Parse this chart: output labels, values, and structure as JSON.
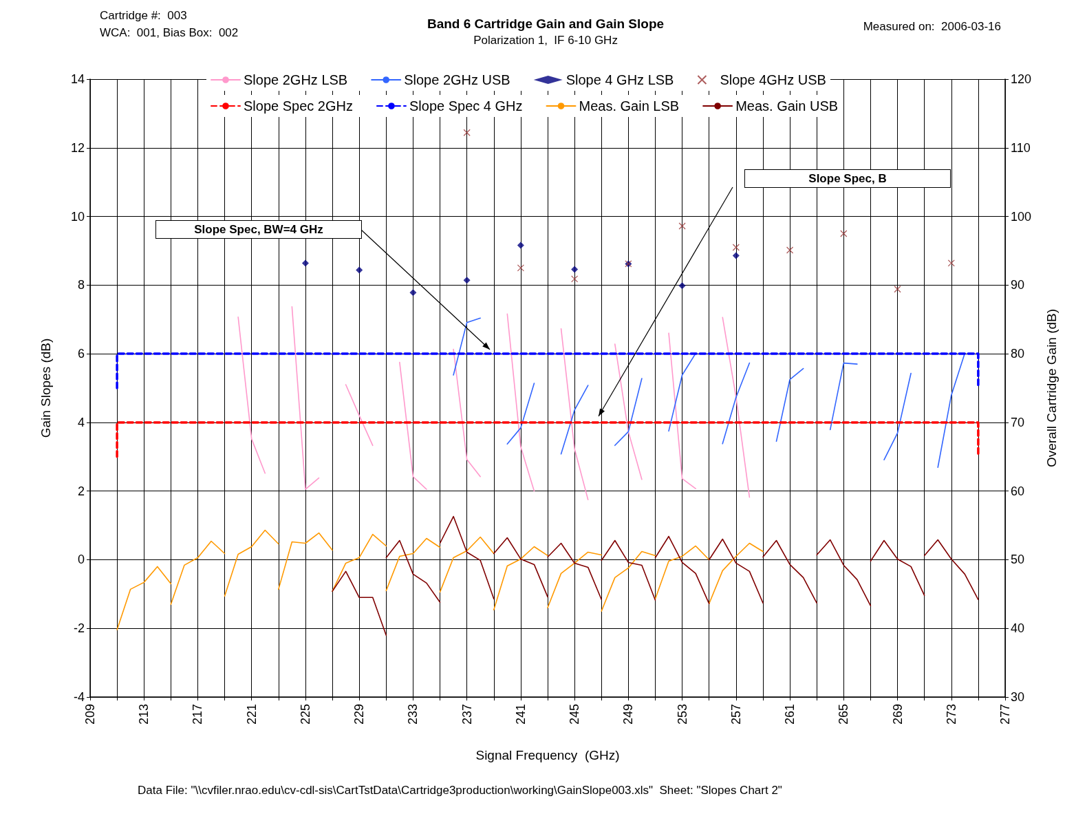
{
  "chart_data": {
    "type": "line",
    "title": "Band 6 Cartridge Gain and Gain Slope",
    "subtitle": "Polarization 1,  IF 6-10 GHz",
    "xlabel": "Signal Frequency  (GHz)",
    "ylabel": "Gain Slopes (dB)",
    "y2label": "Overall Cartridge Gain (dB)",
    "annotations": [
      "Cartridge #:  003",
      "WCA:  001, Bias Box:  002",
      "Measured on:  2006-03-16",
      "Data File: \"\\\\cvfiler.nrao.edu\\cv-cdl-sis\\CartTstData\\Cartridge3production\\working\\GainSlope003.xls\"  Sheet: \"Slopes Chart 2\"",
      "Slope Spec, BW=4 GHz",
      "Slope Spec, B"
    ],
    "xlim": [
      209,
      277
    ],
    "xticks": [
      209,
      {
        "value": 211,
        "label": null
      },
      213,
      {
        "value": 215,
        "label": null
      },
      217,
      {
        "value": 219,
        "label": null
      },
      221,
      {
        "value": 223,
        "label": null
      },
      225,
      {
        "value": 227,
        "label": null
      },
      229,
      {
        "value": 231,
        "label": null
      },
      233,
      {
        "value": 235,
        "label": null
      },
      237,
      {
        "value": 239,
        "label": null
      },
      241,
      {
        "value": 243,
        "label": null
      },
      245,
      {
        "value": 247,
        "label": null
      },
      249,
      {
        "value": 251,
        "label": null
      },
      253,
      {
        "value": 255,
        "label": null
      },
      257,
      {
        "value": 259,
        "label": null
      },
      261,
      {
        "value": 263,
        "label": null
      },
      265,
      {
        "value": 267,
        "label": null
      },
      269,
      {
        "value": 271,
        "label": null
      },
      273,
      {
        "value": 275,
        "label": null
      },
      277
    ],
    "ylim": [
      -4,
      14
    ],
    "yticks": [
      -4,
      -2,
      0,
      2,
      4,
      6,
      8,
      10,
      12,
      14
    ],
    "y2lim": [
      30,
      120
    ],
    "y2ticks": [
      30,
      40,
      50,
      60,
      70,
      80,
      90,
      100,
      110,
      120
    ],
    "grid": true,
    "legend": "top",
    "series": [
      {
        "name": "Slope 2GHz LSB",
        "color": "#ff99cc",
        "marker": "none",
        "x": [
          220,
          221,
          222,
          223,
          224,
          225,
          226,
          227,
          228,
          229,
          230,
          231,
          232,
          233,
          234,
          235,
          236,
          237,
          238,
          239,
          240,
          241,
          242,
          243,
          244,
          245,
          246,
          247,
          248,
          249,
          250,
          251,
          252,
          253,
          254,
          255,
          256,
          257,
          258
        ],
        "values": [
          7.07,
          3.52,
          2.52,
          null,
          7.37,
          2.05,
          2.38,
          null,
          5.1,
          4.2,
          3.33,
          null,
          5.75,
          2.42,
          2.05,
          null,
          6.13,
          2.92,
          2.42,
          null,
          7.16,
          3.29,
          2.0,
          null,
          6.73,
          3.23,
          1.75,
          null,
          6.28,
          3.73,
          2.34,
          null,
          6.6,
          2.36,
          2.07,
          null,
          7.06,
          4.74,
          1.82
        ]
      },
      {
        "name": "Slope 2GHz USB",
        "color": "#3366ff",
        "marker": "none",
        "x": [
          236,
          237,
          238,
          239,
          240,
          241,
          242,
          243,
          244,
          245,
          246,
          247,
          248,
          249,
          250,
          251,
          252,
          253,
          254,
          255,
          256,
          257,
          258,
          259,
          260,
          261,
          262,
          263,
          264,
          265,
          266,
          267,
          268,
          269,
          270,
          271,
          272,
          273,
          274
        ],
        "values": [
          5.38,
          6.91,
          7.04,
          null,
          3.37,
          3.84,
          5.14,
          null,
          3.08,
          4.36,
          5.08,
          null,
          3.33,
          3.73,
          5.28,
          null,
          3.75,
          5.38,
          6.01,
          null,
          3.38,
          4.73,
          5.73,
          null,
          3.45,
          5.25,
          5.57,
          null,
          3.79,
          5.73,
          5.7,
          null,
          2.91,
          3.69,
          5.43,
          null,
          2.69,
          4.79,
          6.01
        ]
      },
      {
        "name": "Slope 4 GHz LSB",
        "type": "scatter",
        "color": "#000080",
        "marker": "diamond",
        "x": [
          225,
          229,
          233,
          237,
          241,
          245,
          249,
          253,
          257
        ],
        "values": [
          8.64,
          8.44,
          7.78,
          8.14,
          9.16,
          8.46,
          8.62,
          7.98,
          8.86
        ]
      },
      {
        "name": "Slope 4GHz USB",
        "type": "scatter",
        "color": "#993333",
        "marker": "cross",
        "x": [
          237,
          241,
          245,
          249,
          253,
          257,
          261,
          265,
          269,
          273
        ],
        "values": [
          12.44,
          8.5,
          8.18,
          8.62,
          9.72,
          9.1,
          9.02,
          9.5,
          7.88,
          8.64
        ]
      },
      {
        "name": "Slope Spec 2GHz",
        "color": "#ff0000",
        "marker": "none",
        "line_style": "dashed",
        "x": [
          211,
          211,
          275,
          275
        ],
        "values": [
          3,
          4,
          4,
          3
        ]
      },
      {
        "name": "Slope Spec 4 GHz",
        "color": "#0000ff",
        "marker": "none",
        "line_style": "dashed",
        "x": [
          211,
          211,
          275,
          275
        ],
        "values": [
          5,
          6,
          6,
          5
        ]
      },
      {
        "name": "Meas. Gain LSB",
        "color": "#ff9900",
        "marker": "none",
        "axis": "y2",
        "x": [
          211,
          212,
          213,
          214,
          215
        ],
        "values": [
          39.8,
          45.7,
          46.7,
          49.0,
          46.5
        ]
      },
      {
        "color": "#ff9900",
        "marker": "none",
        "axis": "y2",
        "x": [
          215,
          216,
          217,
          218,
          219
        ],
        "values": [
          43.5,
          49.2,
          50.3,
          52.7,
          50.9
        ]
      },
      {
        "color": "#ff9900",
        "marker": "none",
        "axis": "y2",
        "x": [
          219,
          220,
          221,
          222,
          223
        ],
        "values": [
          44.7,
          50.8,
          51.9,
          54.3,
          52.3
        ]
      },
      {
        "color": "#ff9900",
        "marker": "none",
        "axis": "y2",
        "x": [
          223,
          224,
          225,
          226,
          227
        ],
        "values": [
          45.7,
          52.6,
          52.4,
          53.9,
          51.4
        ]
      },
      {
        "color": "#ff9900",
        "marker": "none",
        "axis": "y2",
        "x": [
          227,
          228,
          229,
          230,
          231
        ],
        "values": [
          45.4,
          49.5,
          50.3,
          53.7,
          52.0
        ]
      },
      {
        "color": "#ff9900",
        "marker": "none",
        "axis": "y2",
        "x": [
          231,
          232,
          233,
          234,
          235
        ],
        "values": [
          45.5,
          50.5,
          50.9,
          53.1,
          51.8
        ]
      },
      {
        "color": "#ff9900",
        "marker": "none",
        "axis": "y2",
        "x": [
          235,
          236,
          237,
          238,
          239
        ],
        "values": [
          45.3,
          50.3,
          51.3,
          53.3,
          50.9
        ]
      },
      {
        "color": "#ff9900",
        "marker": "none",
        "axis": "y2",
        "x": [
          239,
          240,
          241,
          242,
          243
        ],
        "values": [
          42.7,
          49.1,
          50.1,
          51.9,
          50.6
        ]
      },
      {
        "color": "#ff9900",
        "marker": "none",
        "axis": "y2",
        "x": [
          243,
          244,
          245,
          246,
          247
        ],
        "values": [
          43.0,
          48.0,
          49.5,
          51.1,
          50.7
        ]
      },
      {
        "color": "#ff9900",
        "marker": "none",
        "axis": "y2",
        "x": [
          247,
          248,
          249,
          250,
          251
        ],
        "values": [
          42.5,
          47.4,
          48.8,
          51.2,
          50.6
        ]
      },
      {
        "color": "#ff9900",
        "marker": "none",
        "axis": "y2",
        "x": [
          251,
          252,
          253,
          254,
          255
        ],
        "values": [
          44.3,
          49.8,
          50.5,
          52.0,
          50.0
        ]
      },
      {
        "color": "#ff9900",
        "marker": "none",
        "axis": "y2",
        "x": [
          255,
          256,
          257,
          258,
          259
        ],
        "values": [
          43.6,
          48.4,
          50.5,
          52.4,
          51.2
        ]
      },
      {
        "name": "Meas. Gain USB",
        "color": "#800000",
        "marker": "none",
        "axis": "y2",
        "x": [
          227,
          228,
          229,
          230,
          231
        ],
        "values": [
          45.4,
          48.3,
          44.5,
          44.5,
          39.0
        ]
      },
      {
        "color": "#800000",
        "marker": "none",
        "axis": "y2",
        "x": [
          231,
          232,
          233,
          234,
          235
        ],
        "values": [
          50.3,
          52.8,
          47.9,
          46.6,
          43.8
        ]
      },
      {
        "color": "#800000",
        "marker": "none",
        "axis": "y2",
        "x": [
          235,
          236,
          237,
          238,
          239
        ],
        "values": [
          52.4,
          56.3,
          51.1,
          49.9,
          44.3
        ]
      },
      {
        "color": "#800000",
        "marker": "none",
        "axis": "y2",
        "x": [
          239,
          240,
          241,
          242,
          243
        ],
        "values": [
          50.9,
          53.2,
          50.1,
          49.3,
          44.6
        ]
      },
      {
        "color": "#800000",
        "marker": "none",
        "axis": "y2",
        "x": [
          243,
          244,
          245,
          246,
          247
        ],
        "values": [
          50.4,
          52.4,
          49.5,
          48.9,
          44.2
        ]
      },
      {
        "color": "#800000",
        "marker": "none",
        "axis": "y2",
        "x": [
          247,
          248,
          249,
          250,
          251
        ],
        "values": [
          49.9,
          52.8,
          49.6,
          49.2,
          44.1
        ]
      },
      {
        "color": "#800000",
        "marker": "none",
        "axis": "y2",
        "x": [
          251,
          252,
          253,
          254,
          255
        ],
        "values": [
          50.3,
          53.4,
          49.6,
          48.0,
          43.6
        ]
      },
      {
        "color": "#800000",
        "marker": "none",
        "axis": "y2",
        "x": [
          255,
          256,
          257,
          258,
          259
        ],
        "values": [
          50.0,
          53.0,
          49.5,
          48.3,
          43.7
        ]
      },
      {
        "color": "#800000",
        "marker": "none",
        "axis": "y2",
        "x": [
          259,
          260,
          261,
          262,
          263
        ],
        "values": [
          50.4,
          52.8,
          49.3,
          47.4,
          43.7
        ]
      },
      {
        "color": "#800000",
        "marker": "none",
        "axis": "y2",
        "x": [
          263,
          264,
          265,
          266,
          267
        ],
        "values": [
          50.7,
          52.9,
          49.2,
          47.1,
          43.3
        ]
      },
      {
        "color": "#800000",
        "marker": "none",
        "axis": "y2",
        "x": [
          267,
          268,
          269,
          270,
          271
        ],
        "values": [
          49.8,
          52.8,
          50.1,
          49.0,
          44.8
        ]
      },
      {
        "color": "#800000",
        "marker": "none",
        "axis": "y2",
        "x": [
          271,
          272,
          273,
          274,
          275
        ],
        "values": [
          50.6,
          52.9,
          50.1,
          47.9,
          44.2
        ]
      }
    ]
  }
}
